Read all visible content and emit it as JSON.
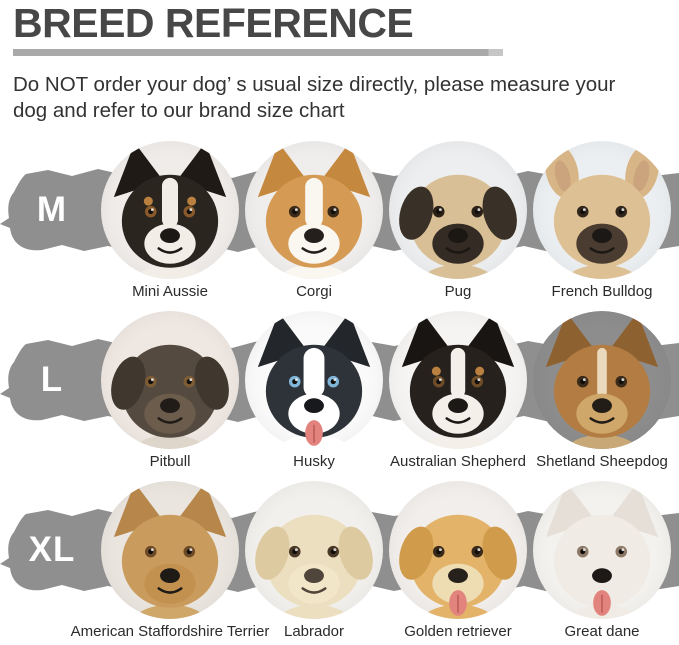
{
  "header": {
    "title": "BREED REFERENCE",
    "title_color": "#474747",
    "divider_color": "#a9a9a9",
    "subtitle_line1": "Do NOT order your dog’ s usual size directly, please measure your",
    "subtitle_line2": "dog and refer to our brand size chart"
  },
  "band_color": "#8f8f8f",
  "size_rows": [
    {
      "size_label": "M",
      "breeds": [
        {
          "name": "Mini Aussie",
          "icon": "dog-face-icon",
          "icon_params": {
            "bg": "#efece9",
            "coat": "#2b2520",
            "ear": "#1f1a16",
            "ear_type": "up",
            "blaze": "#f2ede6",
            "blaze_width": 10,
            "muzzle": "#f2ede6",
            "nose": "#1c1815",
            "eye": "#8a5a2b",
            "brow": "#b9803f",
            "tongue": false
          }
        },
        {
          "name": "Corgi",
          "icon": "dog-face-icon",
          "icon_params": {
            "bg": "#f0eeec",
            "coat": "#d59a53",
            "ear": "#c5883f",
            "ear_type": "up",
            "blaze": "#faf6f0",
            "blaze_width": 11,
            "muzzle": "#faf6f0",
            "nose": "#241f1c",
            "eye": "#3a2a1a",
            "brow": null,
            "tongue": false
          }
        },
        {
          "name": "Pug",
          "icon": "dog-face-icon",
          "icon_params": {
            "bg": "#eceef0",
            "coat": "#d8bf96",
            "ear": "#393027",
            "ear_type": "floppy",
            "blaze": null,
            "muzzle": "#342c24",
            "nose": "#1b1713",
            "eye": "#2a2015",
            "brow": null,
            "tongue": false
          }
        },
        {
          "name": "French Bulldog",
          "icon": "dog-face-icon",
          "icon_params": {
            "bg": "#eceff1",
            "coat": "#ddc093",
            "ear": "#d8b586",
            "ear_type": "bat",
            "blaze": null,
            "muzzle": "#4a3c30",
            "nose": "#1c1815",
            "eye": "#31261b",
            "brow": null,
            "tongue": false
          }
        }
      ]
    },
    {
      "size_label": "L",
      "breeds": [
        {
          "name": "Pitbull",
          "icon": "dog-face-icon",
          "icon_params": {
            "bg": "#efe8e2",
            "coat": "#554a40",
            "ear": "#40372f",
            "ear_type": "floppy",
            "blaze": null,
            "muzzle": "#6b5c4c",
            "nose": "#211c18",
            "eye": "#7d5b33",
            "brow": null,
            "tongue": false,
            "body": "#ded6cb"
          }
        },
        {
          "name": "Husky",
          "icon": "dog-face-icon",
          "icon_params": {
            "bg": "#fafafa",
            "coat": "#2e3339",
            "ear": "#23272c",
            "ear_type": "up",
            "blaze": "#ffffff",
            "blaze_width": 13,
            "muzzle": "#ffffff",
            "nose": "#17191c",
            "eye": "#7fb5d8",
            "brow": null,
            "tongue": true
          }
        },
        {
          "name": "Australian Shepherd",
          "icon": "dog-face-icon",
          "icon_params": {
            "bg": "#f5f4f2",
            "coat": "#26211d",
            "ear": "#191512",
            "ear_type": "up",
            "blaze": "#f4f0e9",
            "blaze_width": 9,
            "muzzle": "#f4f0e9",
            "nose": "#1c1815",
            "eye": "#6f4d28",
            "brow": "#b9803f",
            "tongue": false
          }
        },
        {
          "name": "Shetland Sheepdog",
          "icon": "dog-face-icon",
          "icon_params": {
            "bg": "#8d8d8d",
            "coat": "#b27c42",
            "ear": "#8e6130",
            "ear_type": "up",
            "blaze": "#ead9bd",
            "blaze_width": 6,
            "muzzle": "#cfa76a",
            "nose": "#231d18",
            "eye": "#3a2a1a",
            "brow": null,
            "tongue": false,
            "body": "#c8a876"
          }
        }
      ]
    },
    {
      "size_label": "XL",
      "breeds": [
        {
          "name": "American Staffordshire Terrier",
          "icon": "dog-face-icon",
          "icon_params": {
            "bg": "#eae5df",
            "coat": "#c99c5e",
            "ear": "#b7864a",
            "ear_type": "up",
            "blaze": null,
            "muzzle": "#c2914f",
            "nose": "#1e1a16",
            "eye": "#6d4a27",
            "brow": null,
            "tongue": false,
            "body": "#cfa768"
          }
        },
        {
          "name": "Labrador",
          "icon": "dog-face-icon",
          "icon_params": {
            "bg": "#f2f0ed",
            "coat": "#ecdfc0",
            "ear": "#decaa0",
            "ear_type": "floppy",
            "blaze": null,
            "muzzle": "#f2e6c8",
            "nose": "#50453a",
            "eye": "#4a3826",
            "brow": null,
            "tongue": false
          }
        },
        {
          "name": "Golden retriever",
          "icon": "dog-face-icon",
          "icon_params": {
            "bg": "#f1eeeb",
            "coat": "#e3b369",
            "ear": "#d09b4b",
            "ear_type": "floppy",
            "blaze": null,
            "muzzle": "#eedcb2",
            "nose": "#27211c",
            "eye": "#3a2a1a",
            "brow": null,
            "tongue": true
          }
        },
        {
          "name": "Great dane",
          "icon": "dog-face-icon",
          "icon_params": {
            "bg": "#f4f2ef",
            "coat": "#f0ebe5",
            "ear": "#e6dfd8",
            "ear_type": "up",
            "blaze": null,
            "muzzle": "#f0ebe5",
            "nose": "#1d1917",
            "eye": "#8d7a68",
            "brow": null,
            "tongue": true
          }
        }
      ]
    }
  ]
}
